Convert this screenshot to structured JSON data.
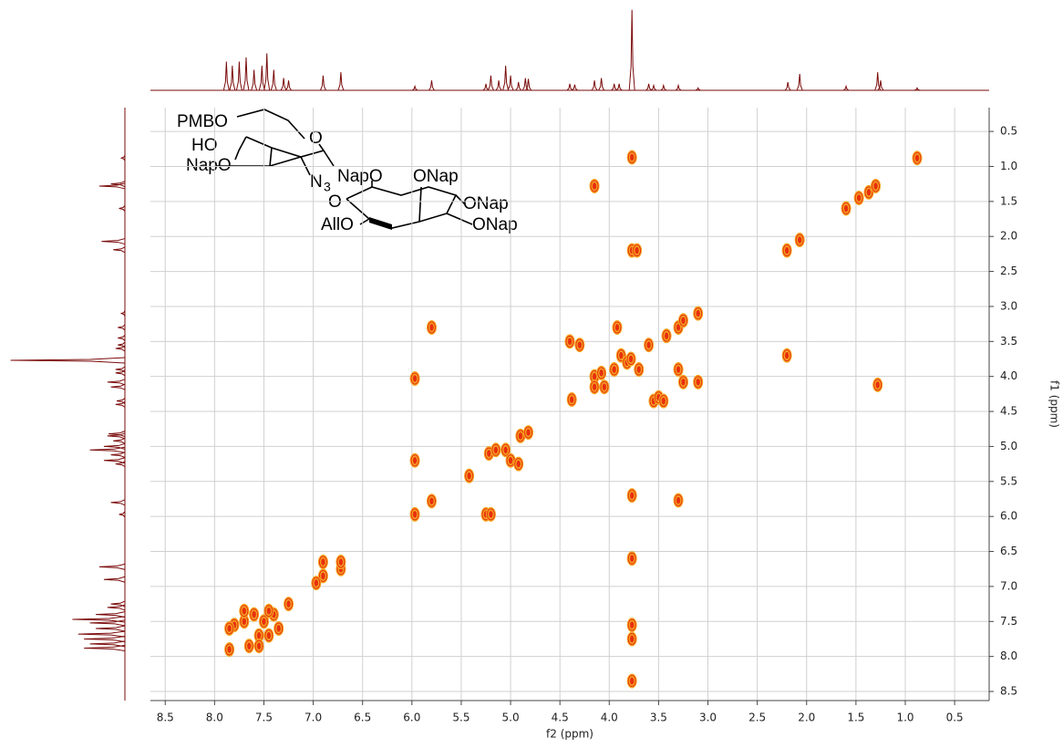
{
  "chart_data": {
    "type": "contour",
    "xlabel": "f2 (ppm)",
    "ylabel": "f1 (ppm)",
    "xlim": [
      8.65,
      0.15
    ],
    "ylim": [
      0.16,
      8.63
    ],
    "xticks": [
      8.5,
      8,
      7.5,
      7,
      6.5,
      6,
      5.5,
      5,
      4.5,
      4,
      3.5,
      3,
      2.5,
      2,
      1.5,
      1,
      0.5
    ],
    "yticks": [
      0.5,
      {
        "value": 1,
        "label": "1.0"
      },
      1.5,
      {
        "value": 2,
        "label": "2.0"
      },
      2.5,
      {
        "value": 3,
        "label": "3.0"
      },
      3.5,
      {
        "value": 4,
        "label": "4.0"
      },
      4.5,
      {
        "value": 5,
        "label": "5.0"
      },
      5.5,
      {
        "value": 6,
        "label": "6.0"
      },
      6.5,
      {
        "value": 7,
        "label": "7.0"
      },
      7.5,
      {
        "value": 8,
        "label": "8.0"
      },
      8.5
    ],
    "xtick_labels": [
      "8.5",
      "8.0",
      "7.5",
      "7.0",
      "6.5",
      "6.0",
      "5.5",
      "5.0",
      "4.5",
      "4.0",
      "3.5",
      "3.0",
      "2.5",
      "2.0",
      "1.5",
      "1.0",
      "0.5"
    ],
    "grid": true,
    "color": "#e8300e",
    "rim_color": "#f5a623",
    "trace_color": "#7a0a0a",
    "peaks": {
      "x": [
        7.85,
        7.8,
        7.7,
        7.65,
        7.6,
        7.55,
        7.5,
        7.45,
        7.4,
        7.35,
        7.25,
        7.85,
        7.7,
        7.55,
        7.45,
        6.9,
        6.72,
        6.9,
        6.72,
        6.97,
        5.97,
        5.97,
        5.97,
        5.8,
        5.8,
        5.42,
        5.25,
        5.2,
        5.22,
        5.15,
        5.05,
        5.0,
        4.92,
        4.9,
        4.82,
        4.4,
        4.38,
        4.3,
        4.15,
        4.15,
        4.08,
        4.05,
        3.95,
        3.92,
        3.88,
        3.82,
        3.78,
        3.7,
        3.6,
        3.55,
        3.5,
        3.45,
        3.42,
        3.3,
        3.3,
        3.3,
        3.25,
        3.1,
        3.1,
        3.25,
        4.15,
        3.77,
        3.77,
        3.77,
        3.77,
        3.77,
        3.77,
        3.77,
        3.72,
        2.2,
        2.2,
        2.07,
        1.6,
        1.47,
        1.37,
        1.3,
        1.28,
        0.88
      ],
      "y": [
        7.9,
        7.55,
        7.5,
        7.85,
        7.4,
        7.7,
        7.5,
        7.7,
        7.4,
        7.6,
        7.25,
        7.6,
        7.35,
        7.85,
        7.35,
        6.85,
        6.75,
        6.65,
        6.65,
        6.95,
        5.2,
        4.03,
        5.97,
        3.3,
        5.78,
        5.42,
        5.97,
        5.97,
        5.1,
        5.05,
        5.05,
        5.2,
        5.25,
        4.85,
        4.8,
        3.5,
        4.33,
        3.55,
        4.0,
        4.15,
        3.95,
        4.15,
        3.9,
        3.3,
        3.7,
        3.8,
        3.75,
        3.9,
        3.55,
        4.35,
        4.3,
        4.35,
        3.42,
        3.3,
        3.9,
        5.77,
        3.2,
        3.1,
        4.08,
        4.08,
        1.28,
        0.87,
        2.2,
        5.7,
        6.6,
        7.55,
        7.75,
        8.35,
        2.2,
        3.7,
        2.2,
        2.05,
        1.6,
        1.45,
        1.37,
        1.28,
        4.12,
        0.88
      ]
    },
    "projection": {
      "x": [
        7.88,
        7.82,
        7.75,
        7.68,
        7.6,
        7.52,
        7.47,
        7.4,
        7.3,
        7.25,
        6.9,
        6.72,
        5.97,
        5.8,
        5.25,
        5.2,
        5.12,
        5.05,
        5.0,
        4.92,
        4.85,
        4.82,
        4.4,
        4.35,
        4.15,
        4.08,
        3.95,
        3.9,
        3.77,
        3.6,
        3.55,
        3.45,
        3.3,
        3.1,
        2.19,
        2.07,
        1.6,
        1.28,
        1.25,
        0.88
      ],
      "values": [
        35,
        30,
        35,
        40,
        25,
        30,
        45,
        25,
        15,
        12,
        18,
        22,
        5,
        12,
        8,
        18,
        12,
        30,
        18,
        10,
        15,
        14,
        8,
        7,
        12,
        15,
        8,
        8,
        98,
        8,
        6,
        6,
        6,
        3,
        10,
        20,
        5,
        22,
        12,
        3
      ]
    },
    "structure_labels": [
      "PMBO",
      "HO",
      "NapO",
      "O",
      "N",
      "3",
      "NapO",
      "ONap",
      "O",
      "ONap",
      "AllO",
      "ONap"
    ]
  }
}
